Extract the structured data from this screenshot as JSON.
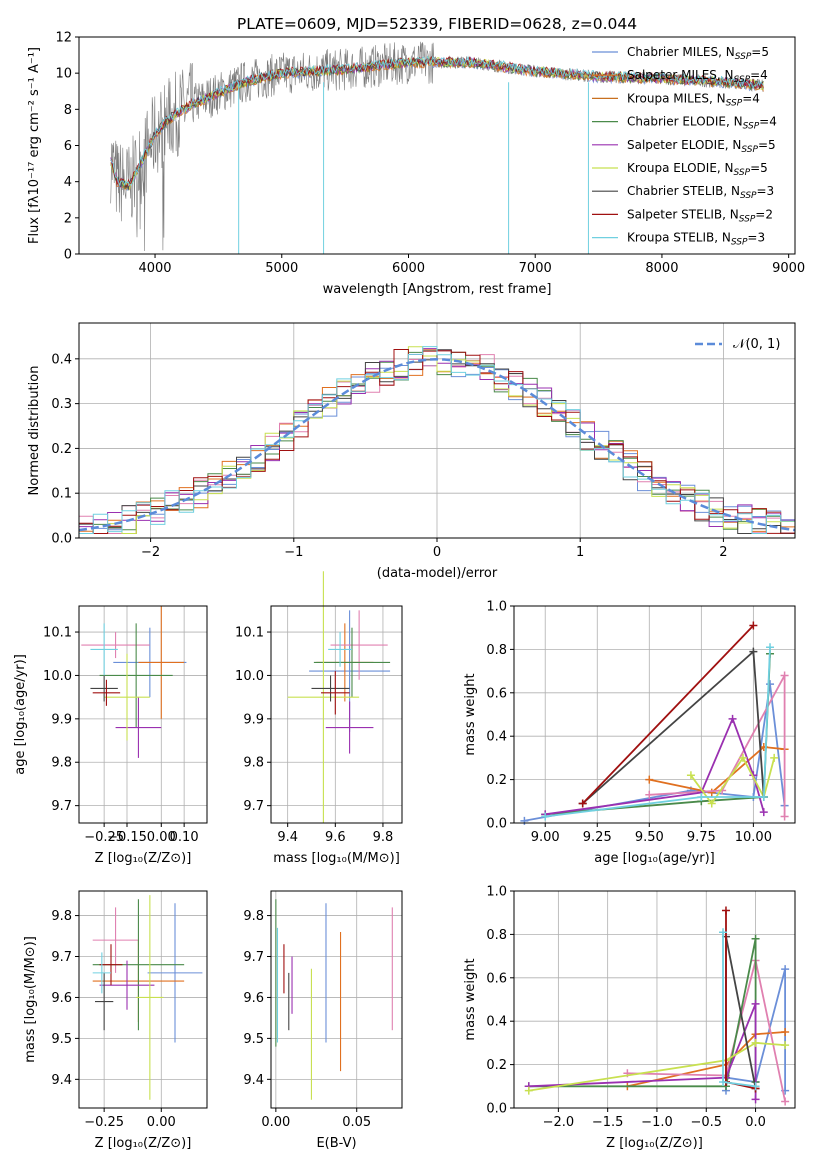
{
  "figure": {
    "title": "PLATE=0609, MJD=52339, FIBERID=0628, z=0.044",
    "colors": [
      "#6b8fd8",
      "#e07020",
      "#7a7a7a",
      "#4a8a4a",
      "#9a30b0",
      "#c8e050",
      "#444444",
      "#a01010",
      "#70d0e0",
      "#e080b0"
    ]
  },
  "chart_data": [
    {
      "id": "spectrum",
      "type": "line",
      "xlabel": "wavelength [Angstrom, rest frame]",
      "ylabel": "Flux [fλ10⁻¹⁷ erg cm⁻² s⁻¹ A⁻¹]",
      "xlim": [
        3400,
        9050
      ],
      "ylim": [
        0,
        12
      ],
      "xticks": [
        4000,
        5000,
        6000,
        7000,
        8000,
        9000
      ],
      "yticks": [
        0,
        2,
        4,
        6,
        8,
        10,
        12
      ],
      "grid": false,
      "legend_position": "top-right",
      "legend": [
        {
          "label": "Chabrier MILES, N",
          "sub": "SSP",
          "suffix": "=5",
          "color": "#6b8fd8"
        },
        {
          "label": "Salpeter MILES, N",
          "sub": "SSP",
          "suffix": "=4",
          "color": "#e07020"
        },
        {
          "label": "Kroupa MILES, N",
          "sub": "SSP",
          "suffix": "=4",
          "color": "#c87020"
        },
        {
          "label": "Chabrier ELODIE, N",
          "sub": "SSP",
          "suffix": "=4",
          "color": "#4a8a4a"
        },
        {
          "label": "Salpeter ELODIE, N",
          "sub": "SSP",
          "suffix": "=5",
          "color": "#9a30b0"
        },
        {
          "label": "Kroupa ELODIE, N",
          "sub": "SSP",
          "suffix": "=5",
          "color": "#c8e050"
        },
        {
          "label": "Chabrier STELIB, N",
          "sub": "SSP",
          "suffix": "=3",
          "color": "#444444"
        },
        {
          "label": "Salpeter STELIB, N",
          "sub": "SSP",
          "suffix": "=2",
          "color": "#a01010"
        },
        {
          "label": "Kroupa STELIB, N",
          "sub": "SSP",
          "suffix": "=3",
          "color": "#70d0e0"
        }
      ],
      "continuum": [
        [
          3650,
          5.2
        ],
        [
          3700,
          4.0
        ],
        [
          3800,
          3.8
        ],
        [
          3900,
          5.2
        ],
        [
          4000,
          6.6
        ],
        [
          4100,
          7.4
        ],
        [
          4200,
          7.9
        ],
        [
          4300,
          8.3
        ],
        [
          4500,
          8.9
        ],
        [
          4700,
          9.5
        ],
        [
          5000,
          10.0
        ],
        [
          5500,
          10.2
        ],
        [
          6000,
          10.6
        ],
        [
          6500,
          10.6
        ],
        [
          7000,
          10.1
        ],
        [
          7500,
          9.8
        ],
        [
          8000,
          9.7
        ],
        [
          8500,
          9.5
        ],
        [
          8800,
          9.3
        ]
      ],
      "dropouts": [
        [
          4660,
          0
        ],
        [
          5330,
          0
        ],
        [
          6790,
          0
        ],
        [
          7420,
          0
        ]
      ]
    },
    {
      "id": "residuals",
      "type": "area",
      "xlabel": "(data-model)/error",
      "ylabel": "Normed distribution",
      "xlim": [
        -2.5,
        2.5
      ],
      "ylim": [
        0,
        0.48
      ],
      "xticks": [
        -2,
        -1,
        0,
        1,
        2
      ],
      "yticks": [
        0.0,
        0.1,
        0.2,
        0.3,
        0.4
      ],
      "grid": true,
      "legend_position": "top-right",
      "legend_label": "𝒩(0, 1)",
      "gaussian_color": "#5b8bd9",
      "bin_width": 0.1
    },
    {
      "id": "age-vs-z",
      "type": "scatter",
      "xlabel": "Z [log₁₀(Z/Z⊙)]",
      "ylabel": "age  [log₁₀(age/yr)]",
      "xlim": [
        -0.36,
        0.2
      ],
      "ylim": [
        9.66,
        10.16
      ],
      "xticks": [
        -0.25,
        -0.15,
        0.0,
        0.1
      ],
      "xticklabels": [
        "−0.25",
        "−0.15",
        "0.00",
        "0.10"
      ],
      "yticks": [
        9.7,
        9.8,
        9.9,
        10.0,
        10.1
      ],
      "grid": true,
      "points": [
        {
          "x": -0.05,
          "y": 10.03,
          "xerr": 0.16,
          "yerr": 0.08,
          "c": "#6b8fd8"
        },
        {
          "x": 0.0,
          "y": 10.03,
          "xerr": 0.1,
          "yerr": 0.13,
          "c": "#e07020"
        },
        {
          "x": -0.2,
          "y": 10.07,
          "xerr": 0.15,
          "yerr": 0.03,
          "c": "#e080b0"
        },
        {
          "x": -0.11,
          "y": 10.0,
          "xerr": 0.16,
          "yerr": 0.12,
          "c": "#4a8a4a"
        },
        {
          "x": -0.1,
          "y": 9.88,
          "xerr": 0.1,
          "yerr": 0.07,
          "c": "#9a30b0"
        },
        {
          "x": -0.15,
          "y": 9.95,
          "xerr": 0.1,
          "yerr": 0.1,
          "c": "#c8e050"
        },
        {
          "x": -0.25,
          "y": 9.97,
          "xerr": 0.06,
          "yerr": 0.03,
          "c": "#444444"
        },
        {
          "x": -0.24,
          "y": 9.96,
          "xerr": 0.06,
          "yerr": 0.03,
          "c": "#a01010"
        },
        {
          "x": -0.25,
          "y": 10.06,
          "xerr": 0.06,
          "yerr": 0.06,
          "c": "#70d0e0"
        }
      ]
    },
    {
      "id": "age-vs-mass",
      "type": "scatter",
      "xlabel": "mass [log₁₀(M/M⊙)]",
      "ylabel": "",
      "xlim": [
        9.33,
        9.88
      ],
      "ylim": [
        9.66,
        10.16
      ],
      "xticks": [
        9.4,
        9.6,
        9.8
      ],
      "yticks": [
        9.7,
        9.8,
        9.9,
        10.0,
        10.1
      ],
      "grid": true,
      "points": [
        {
          "x": 9.66,
          "y": 10.01,
          "xerr": 0.17,
          "yerr": 0.14,
          "c": "#6b8fd8"
        },
        {
          "x": 9.64,
          "y": 10.03,
          "xerr": 0.12,
          "yerr": 0.09,
          "c": "#e07020"
        },
        {
          "x": 9.7,
          "y": 10.07,
          "xerr": 0.12,
          "yerr": 0.08,
          "c": "#e080b0"
        },
        {
          "x": 9.67,
          "y": 10.03,
          "xerr": 0.16,
          "yerr": 0.08,
          "c": "#4a8a4a"
        },
        {
          "x": 9.66,
          "y": 9.88,
          "xerr": 0.1,
          "yerr": 0.06,
          "c": "#9a30b0"
        },
        {
          "x": 9.55,
          "y": 9.95,
          "xerr": 0.15,
          "yerr": 0.29,
          "c": "#c8e050"
        },
        {
          "x": 9.58,
          "y": 9.97,
          "xerr": 0.08,
          "yerr": 0.03,
          "c": "#444444"
        },
        {
          "x": 9.6,
          "y": 9.96,
          "xerr": 0.06,
          "yerr": 0.05,
          "c": "#a01010"
        },
        {
          "x": 9.62,
          "y": 10.06,
          "xerr": 0.05,
          "yerr": 0.04,
          "c": "#70d0e0"
        }
      ]
    },
    {
      "id": "weight-vs-age",
      "type": "line",
      "xlabel": "age  [log₁₀(age/yr)]",
      "ylabel": "mass weight",
      "xlim": [
        8.85,
        10.2
      ],
      "ylim": [
        0,
        1
      ],
      "xticks": [
        9.0,
        9.25,
        9.5,
        9.75,
        10.0
      ],
      "xticklabels": [
        "9.00",
        "9.25",
        "9.50",
        "9.75",
        "10.00"
      ],
      "yticks": [
        0.0,
        0.2,
        0.4,
        0.6,
        0.8,
        1.0
      ],
      "grid": true,
      "series": [
        {
          "c": "#6b8fd8",
          "pts": [
            [
              8.9,
              0.01
            ],
            [
              9.7,
              0.15
            ],
            [
              10.0,
              0.12
            ],
            [
              10.08,
              0.64
            ],
            [
              10.15,
              0.08
            ]
          ]
        },
        {
          "c": "#e07020",
          "pts": [
            [
              9.5,
              0.2
            ],
            [
              9.8,
              0.14
            ],
            [
              10.05,
              0.35
            ],
            [
              10.15,
              0.34
            ]
          ]
        },
        {
          "c": "#e080b0",
          "pts": [
            [
              9.5,
              0.13
            ],
            [
              9.85,
              0.15
            ],
            [
              10.15,
              0.68
            ],
            [
              10.15,
              0.03
            ]
          ]
        },
        {
          "c": "#4a8a4a",
          "pts": [
            [
              9.0,
              0.04
            ],
            [
              9.75,
              0.1
            ],
            [
              10.05,
              0.12
            ],
            [
              10.08,
              0.78
            ]
          ]
        },
        {
          "c": "#9a30b0",
          "pts": [
            [
              9.0,
              0.04
            ],
            [
              9.75,
              0.14
            ],
            [
              9.9,
              0.48
            ],
            [
              10.0,
              0.22
            ],
            [
              10.05,
              0.05
            ]
          ]
        },
        {
          "c": "#c8e050",
          "pts": [
            [
              9.7,
              0.22
            ],
            [
              9.8,
              0.09
            ],
            [
              9.95,
              0.3
            ],
            [
              10.05,
              0.12
            ],
            [
              10.1,
              0.3
            ]
          ]
        },
        {
          "c": "#444444",
          "pts": [
            [
              9.18,
              0.09
            ],
            [
              10.0,
              0.79
            ],
            [
              10.05,
              0.12
            ]
          ]
        },
        {
          "c": "#a01010",
          "pts": [
            [
              9.18,
              0.09
            ],
            [
              10.0,
              0.91
            ]
          ]
        },
        {
          "c": "#70d0e0",
          "pts": [
            [
              9.0,
              0.03
            ],
            [
              9.75,
              0.12
            ],
            [
              10.05,
              0.12
            ],
            [
              10.08,
              0.81
            ]
          ]
        }
      ]
    },
    {
      "id": "mass-vs-z",
      "type": "scatter",
      "xlabel": "Z [log₁₀(Z/Z⊙)]",
      "ylabel": "mass [log₁₀(M/M⊙)]",
      "xlim": [
        -0.36,
        0.2
      ],
      "ylim": [
        9.33,
        9.86
      ],
      "xticks": [
        -0.25,
        0.0
      ],
      "xticklabels": [
        "−0.25",
        "0.00"
      ],
      "yticks": [
        9.4,
        9.5,
        9.6,
        9.7,
        9.8
      ],
      "grid": true,
      "points": [
        {
          "x": 0.06,
          "y": 9.66,
          "xerr": 0.12,
          "yerr": 0.17,
          "c": "#6b8fd8"
        },
        {
          "x": -0.1,
          "y": 9.64,
          "xerr": 0.2,
          "yerr": 0.1,
          "c": "#e07020"
        },
        {
          "x": -0.2,
          "y": 9.74,
          "xerr": 0.1,
          "yerr": 0.08,
          "c": "#e080b0"
        },
        {
          "x": -0.1,
          "y": 9.68,
          "xerr": 0.2,
          "yerr": 0.16,
          "c": "#4a8a4a"
        },
        {
          "x": -0.15,
          "y": 9.63,
          "xerr": 0.12,
          "yerr": 0.06,
          "c": "#9a30b0"
        },
        {
          "x": -0.05,
          "y": 9.6,
          "xerr": 0.06,
          "yerr": 0.25,
          "c": "#c8e050"
        },
        {
          "x": -0.25,
          "y": 9.59,
          "xerr": 0.04,
          "yerr": 0.07,
          "c": "#444444"
        },
        {
          "x": -0.22,
          "y": 9.68,
          "xerr": 0.05,
          "yerr": 0.05,
          "c": "#a01010"
        },
        {
          "x": -0.26,
          "y": 9.66,
          "xerr": 0.04,
          "yerr": 0.05,
          "c": "#70d0e0"
        }
      ]
    },
    {
      "id": "mass-vs-ebv",
      "type": "scatter",
      "xlabel": "E(B-V)",
      "ylabel": "",
      "xlim": [
        -0.003,
        0.078
      ],
      "ylim": [
        9.33,
        9.86
      ],
      "xticks": [
        0.0,
        0.05
      ],
      "xticklabels": [
        "0.00",
        "0.05"
      ],
      "yticks": [
        9.4,
        9.5,
        9.6,
        9.7,
        9.8
      ],
      "grid": true,
      "points": [
        {
          "x": 0.031,
          "y": 9.66,
          "xerr": 0,
          "yerr": 0.17,
          "c": "#6b8fd8"
        },
        {
          "x": 0.04,
          "y": 9.59,
          "xerr": 0,
          "yerr": 0.17,
          "c": "#e07020"
        },
        {
          "x": 0.072,
          "y": 9.67,
          "xerr": 0,
          "yerr": 0.15,
          "c": "#e080b0"
        },
        {
          "x": 0.0,
          "y": 9.66,
          "xerr": 0,
          "yerr": 0.18,
          "c": "#4a8a4a"
        },
        {
          "x": 0.01,
          "y": 9.63,
          "xerr": 0,
          "yerr": 0.07,
          "c": "#9a30b0"
        },
        {
          "x": 0.022,
          "y": 9.51,
          "xerr": 0,
          "yerr": 0.16,
          "c": "#c8e050"
        },
        {
          "x": 0.008,
          "y": 9.59,
          "xerr": 0,
          "yerr": 0.07,
          "c": "#444444"
        },
        {
          "x": 0.005,
          "y": 9.67,
          "xerr": 0,
          "yerr": 0.06,
          "c": "#a01010"
        },
        {
          "x": 0.001,
          "y": 9.63,
          "xerr": 0,
          "yerr": 0.14,
          "c": "#70d0e0"
        }
      ]
    },
    {
      "id": "weight-vs-z",
      "type": "line",
      "xlabel": "Z [log₁₀(Z/Z⊙)]",
      "ylabel": "mass weight",
      "xlim": [
        -2.45,
        0.4
      ],
      "ylim": [
        0,
        1
      ],
      "xticks": [
        -2.0,
        -1.5,
        -1.0,
        -0.5,
        0.0
      ],
      "xticklabels": [
        "−2.0",
        "−1.5",
        "−1.0",
        "−0.5",
        "0.0"
      ],
      "yticks": [
        0.0,
        0.2,
        0.4,
        0.6,
        0.8,
        1.0
      ],
      "grid": true,
      "series": [
        {
          "c": "#6b8fd8",
          "pts": [
            [
              -0.3,
              0.08
            ],
            [
              -0.3,
              0.14
            ],
            [
              0.0,
              0.12
            ],
            [
              0.3,
              0.64
            ],
            [
              0.3,
              0.08
            ]
          ]
        },
        {
          "c": "#e07020",
          "pts": [
            [
              -1.3,
              0.1
            ],
            [
              -0.3,
              0.2
            ],
            [
              0.0,
              0.34
            ],
            [
              0.3,
              0.35
            ]
          ]
        },
        {
          "c": "#e080b0",
          "pts": [
            [
              -1.3,
              0.16
            ],
            [
              -0.3,
              0.15
            ],
            [
              0.0,
              0.68
            ],
            [
              0.3,
              0.03
            ]
          ]
        },
        {
          "c": "#4a8a4a",
          "pts": [
            [
              -2.3,
              0.1
            ],
            [
              -0.3,
              0.1
            ],
            [
              0.0,
              0.78
            ],
            [
              0.0,
              0.12
            ]
          ]
        },
        {
          "c": "#9a30b0",
          "pts": [
            [
              -2.3,
              0.1
            ],
            [
              -0.3,
              0.14
            ],
            [
              0.0,
              0.48
            ],
            [
              0.0,
              0.04
            ]
          ]
        },
        {
          "c": "#c8e050",
          "pts": [
            [
              -2.3,
              0.08
            ],
            [
              -0.3,
              0.22
            ],
            [
              0.0,
              0.3
            ],
            [
              0.3,
              0.29
            ]
          ]
        },
        {
          "c": "#444444",
          "pts": [
            [
              -0.3,
              0.12
            ],
            [
              -0.3,
              0.79
            ],
            [
              0.0,
              0.09
            ]
          ]
        },
        {
          "c": "#a01010",
          "pts": [
            [
              -0.3,
              0.91
            ],
            [
              -0.3,
              0.12
            ],
            [
              0.0,
              0.09
            ]
          ]
        },
        {
          "c": "#70d0e0",
          "pts": [
            [
              -0.33,
              0.81
            ],
            [
              -0.33,
              0.12
            ],
            [
              0.0,
              0.1
            ]
          ]
        }
      ]
    }
  ]
}
